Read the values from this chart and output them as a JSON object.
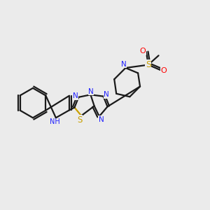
{
  "background_color": "#ebebeb",
  "bond_color": "#1a1a1a",
  "nitrogen_color": "#2020ff",
  "sulfur_color": "#c8a000",
  "oxygen_color": "#ff0000",
  "carbon_color": "#1a1a1a",
  "figsize": [
    3.0,
    3.0
  ],
  "dpi": 100,
  "xlim": [
    0,
    10
  ],
  "ylim": [
    0,
    10
  ]
}
